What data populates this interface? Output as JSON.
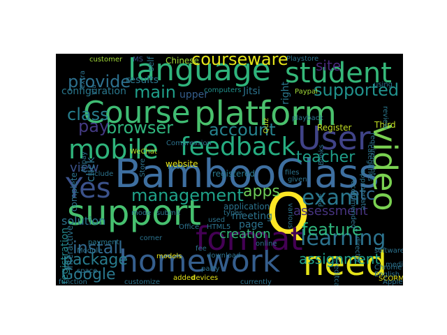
{
  "words": [
    {
      "text": "BambooClass",
      "color": "#3e6fa0"
    },
    {
      "text": "language",
      "color": "#2fb47c"
    },
    {
      "text": "student",
      "color": "#35b779"
    },
    {
      "text": "platform",
      "color": "#4ac16d"
    },
    {
      "text": "Course",
      "color": "#3fbc73"
    },
    {
      "text": "support",
      "color": "#46c06f"
    },
    {
      "text": "homework",
      "color": "#355e8d"
    },
    {
      "text": "video",
      "color": "#7ad151"
    },
    {
      "text": "Q",
      "color": "#fde725"
    },
    {
      "text": "need",
      "color": "#e5e419"
    },
    {
      "text": "format",
      "color": "#440154"
    },
    {
      "text": "mobile",
      "color": "#2fb47c"
    },
    {
      "text": "feedback",
      "color": "#26ad81"
    },
    {
      "text": "User",
      "color": "#404387"
    },
    {
      "text": "Yes",
      "color": "#3b528b"
    },
    {
      "text": "class",
      "color": "#277f8e"
    },
    {
      "text": "management",
      "color": "#1fa188"
    },
    {
      "text": "learning",
      "color": "#2c738e"
    },
    {
      "text": "courseware",
      "color": "#e5e419"
    },
    {
      "text": "exam",
      "color": "#2a788e"
    },
    {
      "text": "account",
      "color": "#26828e"
    },
    {
      "text": "supported",
      "color": "#21918c"
    },
    {
      "text": "main",
      "color": "#1f9e89"
    },
    {
      "text": "browser",
      "color": "#2fb47c"
    },
    {
      "text": "provide",
      "color": "#2d708e"
    },
    {
      "text": "pay",
      "color": "#443a83"
    },
    {
      "text": "install",
      "color": "#31688e"
    },
    {
      "text": "feature",
      "color": "#2fb47c"
    },
    {
      "text": "etc",
      "color": "#31688e"
    },
    {
      "text": "teacher",
      "color": "#1f9e89"
    },
    {
      "text": "apps",
      "color": "#6ece58"
    },
    {
      "text": "Google",
      "color": "#2a788e"
    },
    {
      "text": "package",
      "color": "#287c8e"
    },
    {
      "text": "assignment",
      "color": "#1f9e89"
    },
    {
      "text": "creation",
      "color": "#35b779"
    },
    {
      "text": "site",
      "color": "#482878"
    },
    {
      "text": "view",
      "color": "#3b528b"
    },
    {
      "text": "assessment",
      "color": "#46337e"
    },
    {
      "text": "solution",
      "color": "#2c738e"
    },
    {
      "text": "configuration",
      "color": "#2a788e"
    },
    {
      "text": "registration",
      "color": "#23898e"
    },
    {
      "text": "results",
      "color": "#2a788e"
    },
    {
      "text": "customer",
      "color": "#a2da37"
    },
    {
      "text": "self",
      "color": "#2a788e"
    },
    {
      "text": "Chinese",
      "color": "#a2da37"
    },
    {
      "text": "Playstore",
      "color": "#2c738e"
    },
    {
      "text": "MS",
      "color": "#3b528b"
    },
    {
      "text": "upper",
      "color": "#355e8d"
    },
    {
      "text": "computers",
      "color": "#21918c"
    },
    {
      "text": "Jitsi",
      "color": "#2c738e"
    },
    {
      "text": "right",
      "color": "#2a788e"
    },
    {
      "text": "Paypal",
      "color": "#a2da37"
    },
    {
      "text": "Quiz",
      "color": "#c2df23"
    },
    {
      "text": "playback",
      "color": "#2a788e"
    },
    {
      "text": "Register",
      "color": "#c2df23"
    },
    {
      "text": "Third",
      "color": "#c2df23"
    },
    {
      "text": "review",
      "color": "#2a788e"
    },
    {
      "text": "using",
      "color": "#2c738e"
    },
    {
      "text": "click",
      "color": "#2c738e"
    },
    {
      "text": "complete",
      "color": "#2c738e"
    },
    {
      "text": "interactive",
      "color": "#2c738e"
    },
    {
      "text": "payment",
      "color": "#2a788e"
    },
    {
      "text": "include",
      "color": "#2c738e"
    },
    {
      "text": "better",
      "color": "#2c738e"
    },
    {
      "text": "Compression",
      "color": "#2c738e"
    },
    {
      "text": "WeChat",
      "color": "#b5de2b"
    },
    {
      "text": "Store",
      "color": "#2c738e"
    },
    {
      "text": "website",
      "color": "#e5e419"
    },
    {
      "text": "registered",
      "color": "#2a788e"
    },
    {
      "text": "mode",
      "color": "#2c738e"
    },
    {
      "text": "submit",
      "color": "#2c738e"
    },
    {
      "text": "types",
      "color": "#2c738e"
    },
    {
      "text": "application",
      "color": "#2c738e"
    },
    {
      "text": "meeting",
      "color": "#2c738e"
    },
    {
      "text": "page",
      "color": "#2c738e"
    },
    {
      "text": "used",
      "color": "#2c738e"
    },
    {
      "text": "HTML5",
      "color": "#2c738e"
    },
    {
      "text": "Office",
      "color": "#2c738e"
    },
    {
      "text": "corner",
      "color": "#2c738e"
    },
    {
      "text": "fee",
      "color": "#2c738e"
    },
    {
      "text": "online",
      "color": "#2c738e"
    },
    {
      "text": "download",
      "color": "#2c738e"
    },
    {
      "text": "models",
      "color": "#e5e419"
    },
    {
      "text": "added",
      "color": "#e5e419"
    },
    {
      "text": "devices",
      "color": "#e5e419"
    },
    {
      "text": "customize",
      "color": "#2c738e"
    },
    {
      "text": "currently",
      "color": "#2c738e"
    },
    {
      "text": "space",
      "color": "#2c738e"
    },
    {
      "text": "function",
      "color": "#2c738e"
    },
    {
      "text": "Module",
      "color": "#2c738e"
    },
    {
      "text": "party",
      "color": "#2c738e"
    },
    {
      "text": "Chrome",
      "color": "#2c738e"
    },
    {
      "text": "English",
      "color": "#2c738e"
    },
    {
      "text": "SCORM",
      "color": "#e5e419"
    },
    {
      "text": "Apple",
      "color": "#2c738e"
    },
    {
      "text": "media",
      "color": "#2c738e"
    },
    {
      "text": "software",
      "color": "#2c738e"
    },
    {
      "text": "directly",
      "color": "#2c738e"
    },
    {
      "text": "various",
      "color": "#2c738e"
    },
    {
      "text": "files",
      "color": "#2c738e"
    },
    {
      "text": "given",
      "color": "#2c738e"
    },
    {
      "text": "appropriate",
      "color": "#2c738e"
    },
    {
      "text": "categories",
      "color": "#2c738e"
    },
    {
      "text": "requirements",
      "color": "#2c738e"
    },
    {
      "text": "recommended",
      "color": "#2c738e"
    },
    {
      "text": "Creditcard",
      "color": "#2c738e"
    },
    {
      "text": "Alipay",
      "color": "#2c738e"
    },
    {
      "text": "extra",
      "color": "#2c738e"
    },
    {
      "text": "via",
      "color": "#2c738e"
    },
    {
      "text": "Books",
      "color": "#2c738e"
    },
    {
      "text": "PDF",
      "color": "#2c738e"
    }
  ]
}
